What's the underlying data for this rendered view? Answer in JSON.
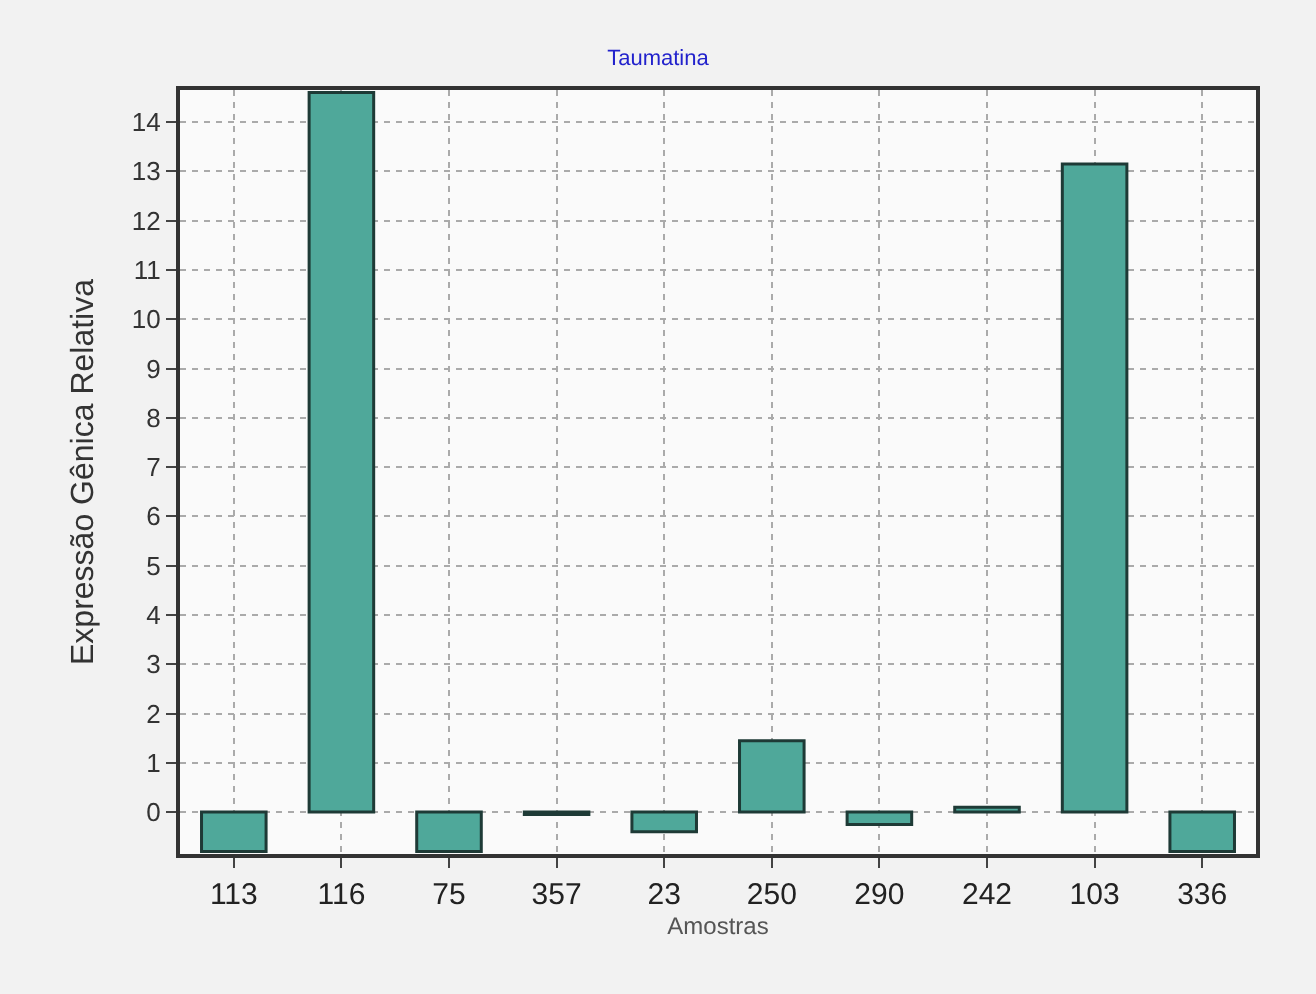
{
  "chart_data": {
    "type": "bar",
    "title": "Taumatina",
    "xlabel": "Amostras",
    "ylabel": "Expressão Gênica Relativa",
    "categories": [
      "113",
      "116",
      "75",
      "357",
      "23",
      "250",
      "290",
      "242",
      "103",
      "336"
    ],
    "values": [
      -0.8,
      14.6,
      -0.8,
      -0.05,
      -0.4,
      1.45,
      -0.25,
      0.1,
      13.15,
      -0.8
    ],
    "color": "#4fa89a",
    "ylim": [
      -0.85,
      14.65
    ],
    "yticks": [
      0,
      1,
      2,
      3,
      4,
      5,
      6,
      7,
      8,
      9,
      10,
      11,
      12,
      13,
      14
    ],
    "grid": true,
    "legend": false
  }
}
